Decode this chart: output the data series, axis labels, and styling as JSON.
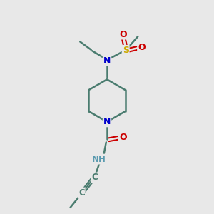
{
  "bg_color": "#e8e8e8",
  "atom_colors": {
    "C": "#4a7c6f",
    "N": "#0000cc",
    "O": "#cc0000",
    "S": "#ccaa00",
    "H": "#5a9aaf"
  },
  "bond_color": "#4a7c6f",
  "figsize": [
    3.0,
    3.0
  ],
  "dpi": 100
}
